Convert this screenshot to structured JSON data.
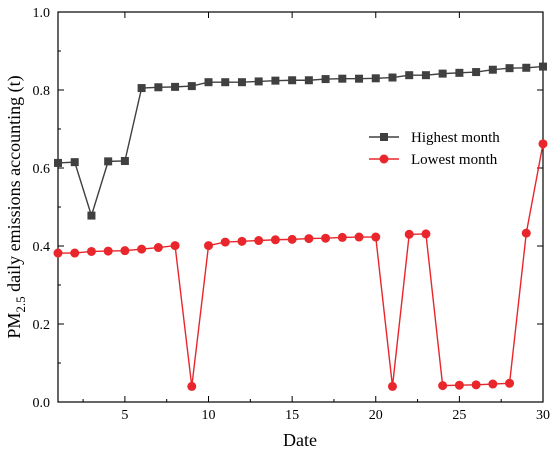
{
  "chart_data": {
    "type": "line",
    "xlabel": "Date",
    "ylabel": "PM2.5 daily emissions accounting (t)",
    "ylabel_parts": {
      "prefix": "PM",
      "subscript": "2.5",
      "suffix": " daily emissions accounting (t)"
    },
    "xlim": [
      1,
      30
    ],
    "ylim": [
      0,
      1.0
    ],
    "xticks": [
      5,
      10,
      15,
      20,
      25,
      30
    ],
    "yticks": [
      0.0,
      0.2,
      0.4,
      0.6,
      0.8,
      1.0
    ],
    "ytick_labels": [
      "0.0",
      "0.2",
      "0.4",
      "0.6",
      "0.8",
      "1.0"
    ],
    "legend_position": "center-right",
    "grid": false,
    "x": [
      1,
      2,
      3,
      4,
      5,
      6,
      7,
      8,
      9,
      10,
      11,
      12,
      13,
      14,
      15,
      16,
      17,
      18,
      19,
      20,
      21,
      22,
      23,
      24,
      25,
      26,
      27,
      28,
      29,
      30
    ],
    "series": [
      {
        "name": "Highest month",
        "color": "#404040",
        "marker": "square",
        "values": [
          0.613,
          0.615,
          0.478,
          0.617,
          0.618,
          0.805,
          0.807,
          0.808,
          0.81,
          0.82,
          0.82,
          0.82,
          0.822,
          0.824,
          0.825,
          0.825,
          0.828,
          0.829,
          0.829,
          0.83,
          0.832,
          0.838,
          0.838,
          0.842,
          0.844,
          0.846,
          0.852,
          0.856,
          0.857,
          0.86
        ]
      },
      {
        "name": "Lowest month",
        "color": "#e8262b",
        "marker": "circle",
        "values": [
          0.382,
          0.382,
          0.386,
          0.387,
          0.388,
          0.392,
          0.396,
          0.401,
          0.04,
          0.401,
          0.41,
          0.412,
          0.414,
          0.416,
          0.417,
          0.419,
          0.42,
          0.422,
          0.423,
          0.423,
          0.04,
          0.43,
          0.431,
          0.042,
          0.043,
          0.044,
          0.046,
          0.048,
          0.433,
          0.662
        ]
      }
    ]
  }
}
